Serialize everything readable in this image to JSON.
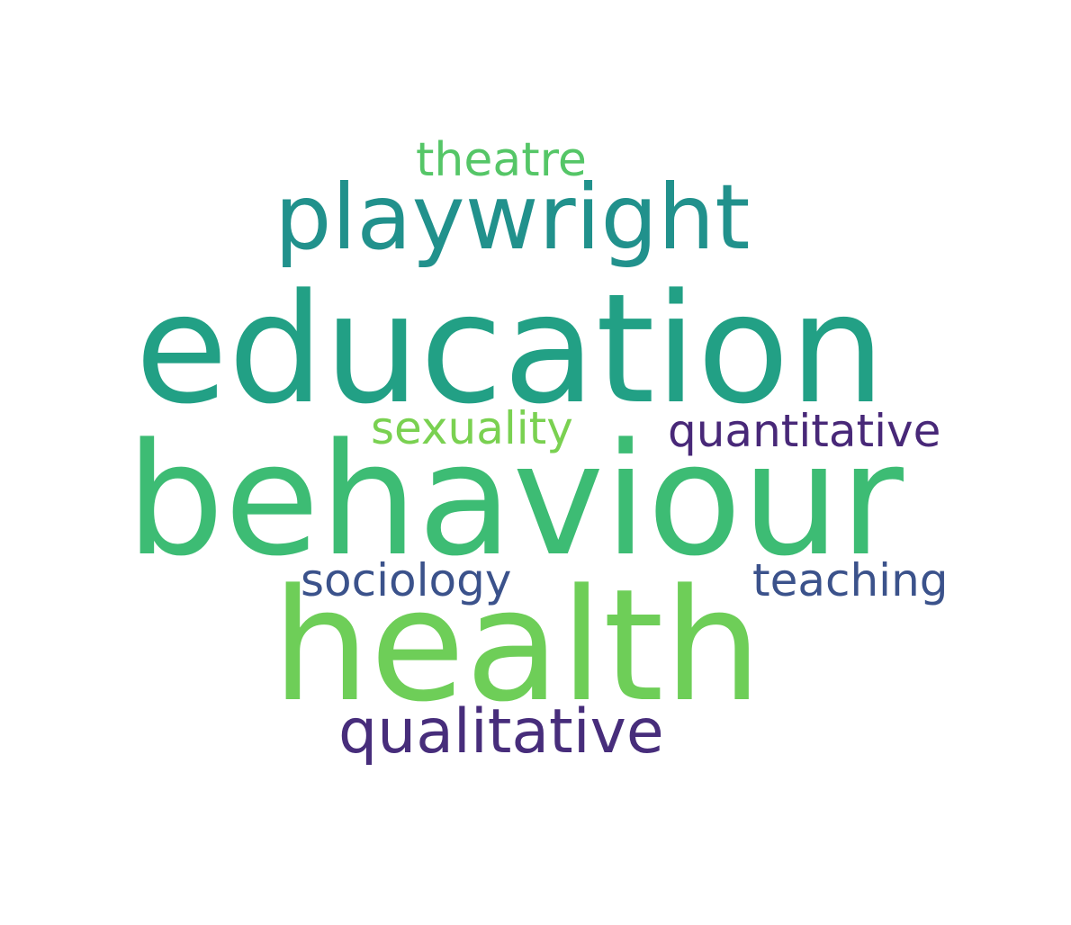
{
  "words": [
    {
      "text": "theatre",
      "color": "#55c667"
    },
    {
      "text": "playwright",
      "color": "#21918c"
    },
    {
      "text": "education",
      "color": "#22a085"
    },
    {
      "text": "sexuality",
      "color": "#7ad151"
    },
    {
      "text": "quantitative",
      "color": "#482878"
    },
    {
      "text": "behaviour",
      "color": "#3dbc74"
    },
    {
      "text": "sociology",
      "color": "#3b528b"
    },
    {
      "text": "teaching",
      "color": "#3b528b"
    },
    {
      "text": "health",
      "color": "#6ece58"
    },
    {
      "text": "qualitative",
      "color": "#472d7b"
    }
  ]
}
